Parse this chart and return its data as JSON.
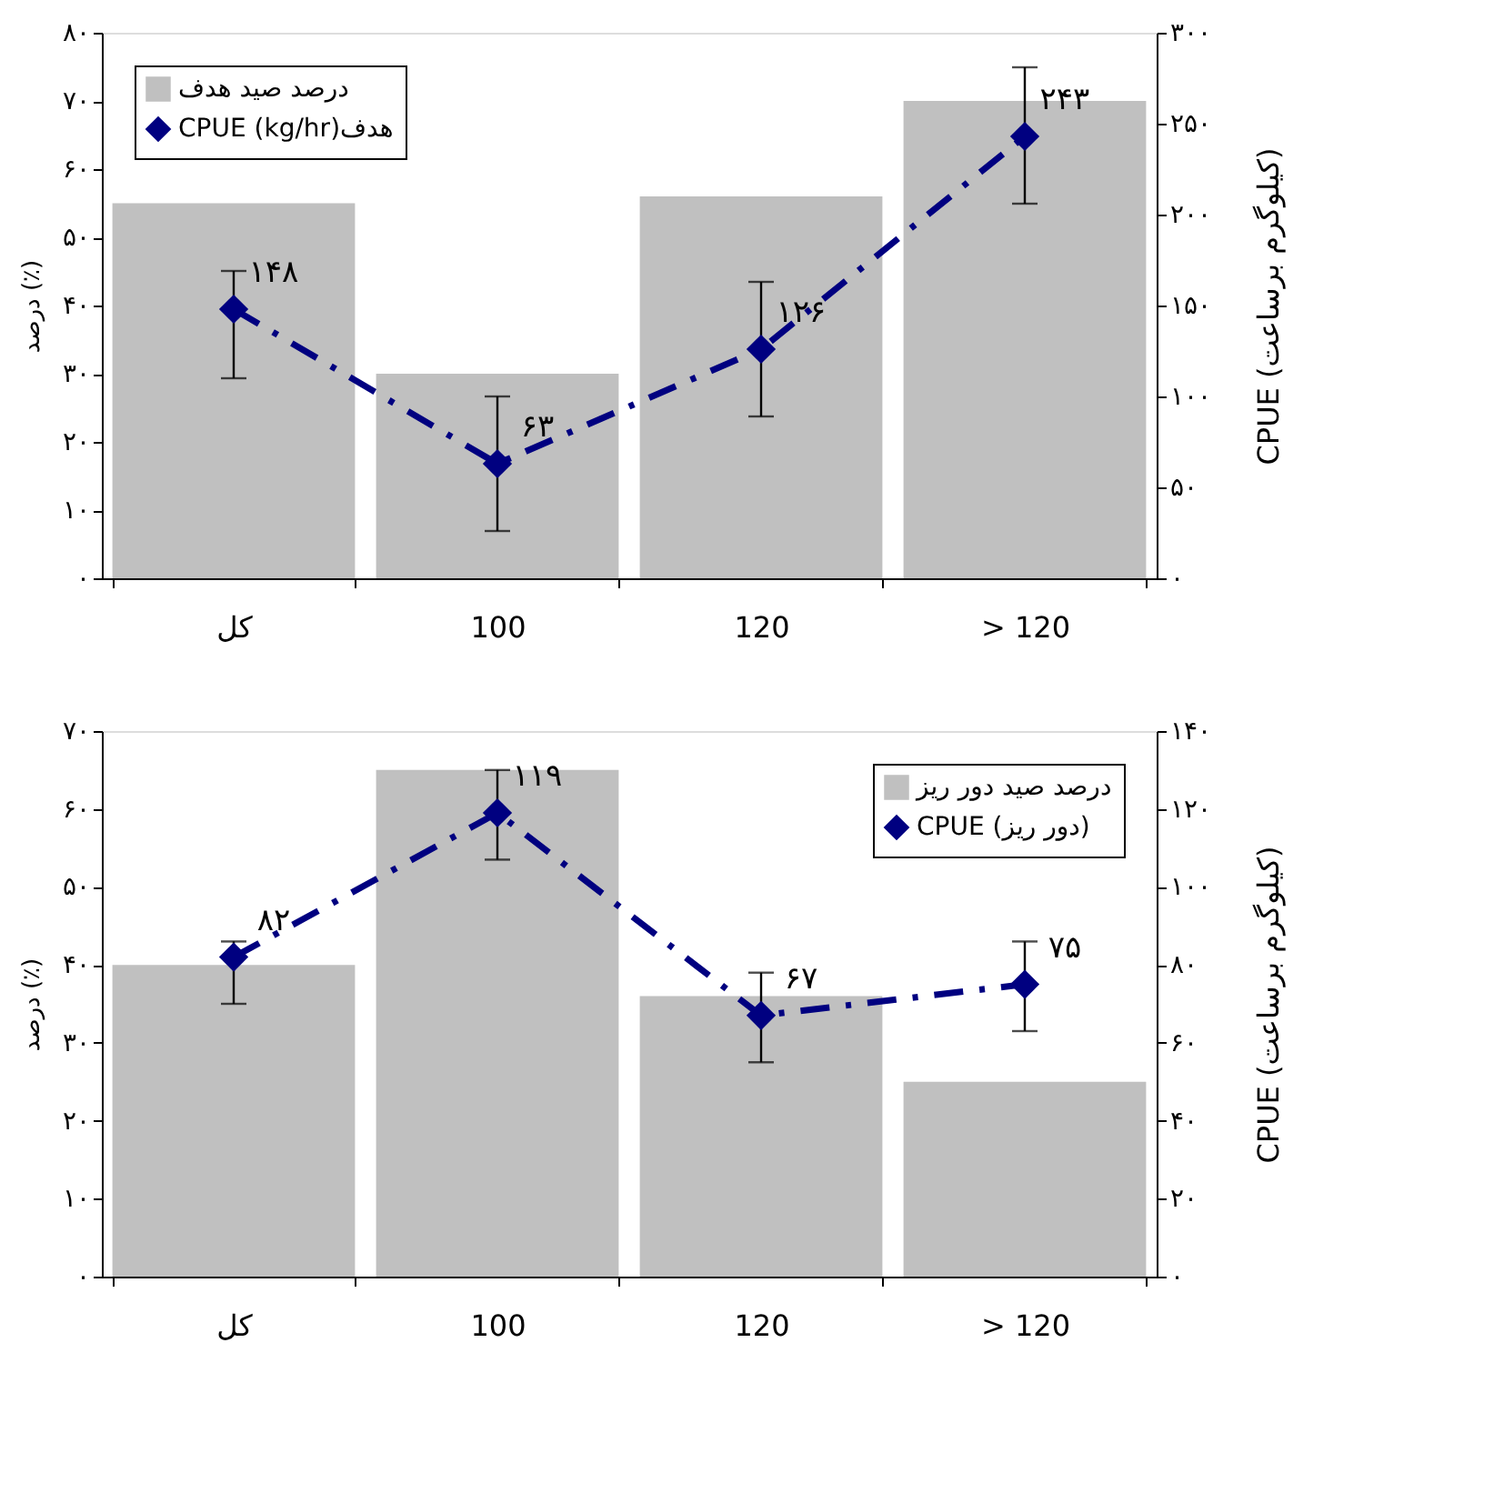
{
  "chart_data": [
    {
      "type": "bar",
      "categories": [
        "کل",
        "100",
        "120",
        "> 120"
      ],
      "ylabel": "درصد (٪)",
      "y2label": "CPUE (کیلوگرم برساعت)",
      "ylim": [
        0,
        80
      ],
      "yticks": [
        {
          "value": 0,
          "label": "۰"
        },
        {
          "value": 10,
          "label": "۱۰"
        },
        {
          "value": 20,
          "label": "۲۰"
        },
        {
          "value": 30,
          "label": "۳۰"
        },
        {
          "value": 40,
          "label": "۴۰"
        },
        {
          "value": 50,
          "label": "۵۰"
        },
        {
          "value": 60,
          "label": "۶۰"
        },
        {
          "value": 70,
          "label": "۷۰"
        },
        {
          "value": 80,
          "label": "۸۰"
        }
      ],
      "y2lim": [
        0,
        300
      ],
      "y2ticks": [
        {
          "value": 0,
          "label": "۰"
        },
        {
          "value": 50,
          "label": "۵۰"
        },
        {
          "value": 100,
          "label": "۱۰۰"
        },
        {
          "value": 150,
          "label": "۱۵۰"
        },
        {
          "value": 200,
          "label": "۲۰۰"
        },
        {
          "value": 250,
          "label": "۲۵۰"
        },
        {
          "value": 300,
          "label": "۳۰۰"
        }
      ],
      "series": [
        {
          "name": "درصد صید هدف",
          "color": "#c0c0c0",
          "values": [
            55,
            30,
            56,
            70
          ]
        },
        {
          "name": "CPUE (kg/hr)هدف",
          "type": "line",
          "axis": "y2",
          "color": "#000080",
          "marker": "diamond",
          "line_style": "dashed",
          "values": [
            148,
            63,
            126,
            243
          ],
          "errors": [
            [
              110,
              169
            ],
            [
              26,
              100
            ],
            [
              89,
              163
            ],
            [
              206,
              281
            ]
          ],
          "value_labels": [
            "۱۴۸",
            "۶۳",
            "۱۲۶",
            "۲۴۳"
          ]
        }
      ],
      "legend": "top left",
      "grid": false
    },
    {
      "type": "bar",
      "categories": [
        "کل",
        "100",
        "120",
        "> 120"
      ],
      "ylabel": "درصد (٪)",
      "y2label": "CPUE (کیلوگرم برساعت)",
      "ylim": [
        0,
        70
      ],
      "yticks": [
        {
          "value": 0,
          "label": "۰"
        },
        {
          "value": 10,
          "label": "۱۰"
        },
        {
          "value": 20,
          "label": "۲۰"
        },
        {
          "value": 30,
          "label": "۳۰"
        },
        {
          "value": 40,
          "label": "۴۰"
        },
        {
          "value": 50,
          "label": "۵۰"
        },
        {
          "value": 60,
          "label": "۶۰"
        },
        {
          "value": 70,
          "label": "۷۰"
        }
      ],
      "y2lim": [
        0,
        140
      ],
      "y2ticks": [
        {
          "value": 0,
          "label": "۰"
        },
        {
          "value": 20,
          "label": "۲۰"
        },
        {
          "value": 40,
          "label": "۴۰"
        },
        {
          "value": 60,
          "label": "۶۰"
        },
        {
          "value": 80,
          "label": "۸۰"
        },
        {
          "value": 100,
          "label": "۱۰۰"
        },
        {
          "value": 120,
          "label": "۱۲۰"
        },
        {
          "value": 140,
          "label": "۱۴۰"
        }
      ],
      "series": [
        {
          "name": "درصد صید دور ریز",
          "color": "#c0c0c0",
          "values": [
            40,
            65,
            36,
            25
          ]
        },
        {
          "name": "CPUE (دور ریز)",
          "type": "line",
          "axis": "y2",
          "color": "#000080",
          "marker": "diamond",
          "line_style": "dashed",
          "values": [
            82,
            119,
            67,
            75
          ],
          "errors": [
            [
              70,
              86
            ],
            [
              107,
              130
            ],
            [
              55,
              78
            ],
            [
              63,
              86
            ]
          ],
          "value_labels": [
            "۸۲",
            "۱۱۹",
            "۶۷",
            "۷۵"
          ]
        }
      ],
      "legend": "top right",
      "grid": false
    }
  ]
}
